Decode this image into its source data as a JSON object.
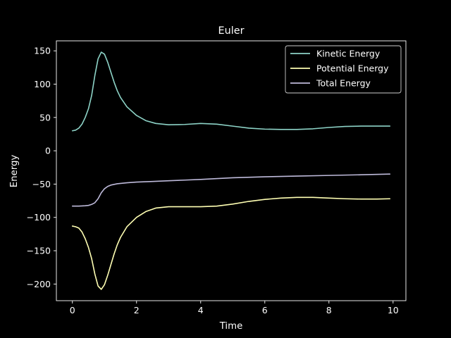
{
  "chart_data": {
    "type": "line",
    "title": "Euler",
    "xlabel": "Time",
    "ylabel": "Energy",
    "xlim": [
      -0.5,
      10.4
    ],
    "ylim": [
      -225,
      165
    ],
    "xticks": [
      0,
      2,
      4,
      6,
      8,
      10
    ],
    "yticks": [
      150,
      100,
      50,
      0,
      -50,
      -100,
      -150,
      -200
    ],
    "xtick_labels": [
      "0",
      "2",
      "4",
      "6",
      "8",
      "10"
    ],
    "ytick_labels": [
      "150",
      "100",
      "50",
      "0",
      "−50",
      "−100",
      "−150",
      "−200"
    ],
    "grid": false,
    "legend_position": "top-right",
    "background": "#000000",
    "series": [
      {
        "name": "Kinetic Energy",
        "color": "#8dd3c7",
        "x": [
          0,
          0.1,
          0.2,
          0.3,
          0.4,
          0.5,
          0.6,
          0.7,
          0.8,
          0.9,
          1.0,
          1.1,
          1.2,
          1.3,
          1.4,
          1.5,
          1.7,
          2.0,
          2.3,
          2.6,
          3.0,
          3.5,
          4.0,
          4.5,
          5.0,
          5.5,
          6.0,
          6.5,
          7.0,
          7.5,
          8.0,
          8.5,
          9.0,
          9.5,
          9.9
        ],
        "y": [
          30,
          31,
          34,
          40,
          50,
          63,
          83,
          113,
          138,
          148,
          145,
          133,
          118,
          103,
          90,
          80,
          66,
          53,
          45,
          41,
          39,
          39.5,
          41,
          40,
          37,
          34,
          32.5,
          32,
          32,
          33,
          35,
          36.5,
          37,
          37,
          37
        ]
      },
      {
        "name": "Potential Energy",
        "color": "#ffffb3",
        "x": [
          0,
          0.1,
          0.2,
          0.3,
          0.4,
          0.5,
          0.6,
          0.7,
          0.8,
          0.9,
          1.0,
          1.1,
          1.2,
          1.3,
          1.4,
          1.5,
          1.7,
          2.0,
          2.3,
          2.6,
          3.0,
          3.5,
          4.0,
          4.5,
          5.0,
          5.5,
          6.0,
          6.5,
          7.0,
          7.5,
          8.0,
          8.5,
          9.0,
          9.5,
          9.9
        ],
        "y": [
          -113,
          -114,
          -116,
          -122,
          -132,
          -145,
          -162,
          -185,
          -203,
          -208,
          -201,
          -187,
          -171,
          -155,
          -141,
          -130,
          -114,
          -100,
          -91,
          -86,
          -84,
          -84,
          -84,
          -83,
          -80,
          -76,
          -73,
          -71,
          -70,
          -70,
          -71,
          -72,
          -72.5,
          -72.5,
          -72
        ]
      },
      {
        "name": "Total Energy",
        "color": "#bebada",
        "x": [
          0,
          0.2,
          0.4,
          0.5,
          0.6,
          0.7,
          0.8,
          0.9,
          1.0,
          1.1,
          1.2,
          1.4,
          1.7,
          2.0,
          2.5,
          3.0,
          3.5,
          4.0,
          5.0,
          6.0,
          7.0,
          8.0,
          9.0,
          9.9
        ],
        "y": [
          -83,
          -83,
          -82.5,
          -82,
          -80.5,
          -78,
          -72,
          -63,
          -57,
          -53.5,
          -51.5,
          -49.5,
          -48,
          -47,
          -46,
          -45,
          -44,
          -43,
          -40.5,
          -39,
          -38,
          -37,
          -36,
          -35
        ]
      }
    ]
  }
}
